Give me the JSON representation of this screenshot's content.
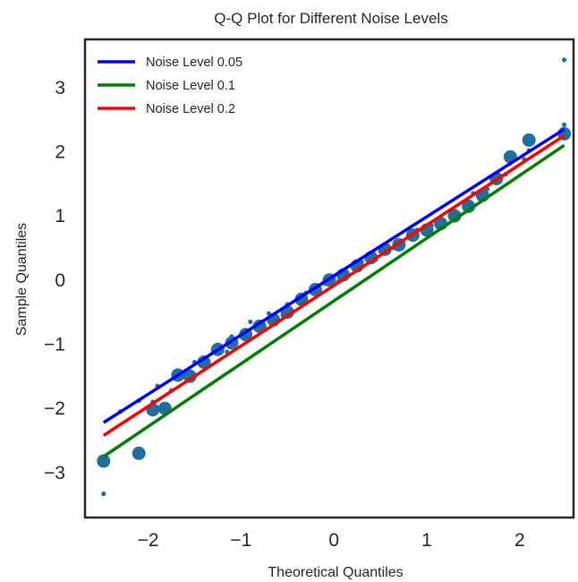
{
  "chart_data": {
    "type": "scatter",
    "title": "Q-Q Plot for Different Noise Levels",
    "xlabel": "Theoretical Quantiles",
    "ylabel": "Sample Quantiles",
    "xlim": [
      -2.68,
      2.58
    ],
    "ylim": [
      -3.7,
      3.75
    ],
    "xticks": [
      -2,
      -1,
      0,
      1,
      2
    ],
    "xtick_labels": [
      "−2",
      "−1",
      "0",
      "1",
      "2"
    ],
    "yticks": [
      -3,
      -2,
      -1,
      0,
      1,
      2,
      3
    ],
    "ytick_labels": [
      "−3",
      "−2",
      "−1",
      "0",
      "1",
      "2",
      "3"
    ],
    "grid": false,
    "legend_position": "top-left",
    "point_color": "#1f6f9f",
    "series": [
      {
        "name": "Noise Level 0.05",
        "color": "#0000ff",
        "marker_size": "small",
        "line": {
          "x": [
            -2.48,
            2.48
          ],
          "y": [
            -2.22,
            2.35
          ]
        },
        "points": [
          [
            -2.48,
            -3.33
          ],
          [
            -2.1,
            -1.88
          ],
          [
            -1.9,
            -1.65
          ],
          [
            -1.7,
            -1.42
          ],
          [
            -1.5,
            -1.28
          ],
          [
            -1.3,
            -1.1
          ],
          [
            -1.1,
            -0.88
          ],
          [
            -0.9,
            -0.65
          ],
          [
            -0.7,
            -0.52
          ],
          [
            -0.5,
            -0.38
          ],
          [
            -0.3,
            -0.2
          ],
          [
            -0.1,
            -0.05
          ],
          [
            0.1,
            0.1
          ],
          [
            0.3,
            0.28
          ],
          [
            0.5,
            0.45
          ],
          [
            0.7,
            0.62
          ],
          [
            0.9,
            0.78
          ],
          [
            1.1,
            0.92
          ],
          [
            1.3,
            1.08
          ],
          [
            1.5,
            1.35
          ],
          [
            1.7,
            1.6
          ],
          [
            1.9,
            1.82
          ],
          [
            2.1,
            2.02
          ],
          [
            2.48,
            3.43
          ]
        ]
      },
      {
        "name": "Noise Level 0.1",
        "color": "#008000",
        "marker_size": "small",
        "line": {
          "x": [
            -2.48,
            2.48
          ],
          "y": [
            -2.75,
            2.1
          ]
        },
        "points": [
          [
            -2.3,
            -2.05
          ],
          [
            -1.95,
            -1.9
          ],
          [
            -1.75,
            -1.72
          ],
          [
            -1.55,
            -1.45
          ],
          [
            -1.35,
            -1.3
          ],
          [
            -1.15,
            -1.12
          ],
          [
            -0.95,
            -0.92
          ],
          [
            -0.75,
            -0.72
          ],
          [
            -0.55,
            -0.55
          ],
          [
            -0.35,
            -0.38
          ],
          [
            -0.15,
            -0.2
          ],
          [
            0.05,
            -0.02
          ],
          [
            0.25,
            0.15
          ],
          [
            0.45,
            0.32
          ],
          [
            0.65,
            0.5
          ],
          [
            0.85,
            0.68
          ],
          [
            1.05,
            0.85
          ],
          [
            1.25,
            1.0
          ],
          [
            1.45,
            1.2
          ],
          [
            1.65,
            1.42
          ],
          [
            1.85,
            1.65
          ],
          [
            2.05,
            1.88
          ],
          [
            2.48,
            2.42
          ]
        ]
      },
      {
        "name": "Noise Level 0.2",
        "color": "#ff0000",
        "marker_size": "large",
        "line": {
          "x": [
            -2.48,
            2.48
          ],
          "y": [
            -2.42,
            2.25
          ]
        },
        "points": [
          [
            -2.48,
            -2.82
          ],
          [
            -2.1,
            -2.7
          ],
          [
            -1.95,
            -2.02
          ],
          [
            -1.82,
            -2.0
          ],
          [
            -1.68,
            -1.48
          ],
          [
            -1.55,
            -1.5
          ],
          [
            -1.4,
            -1.28
          ],
          [
            -1.25,
            -1.08
          ],
          [
            -1.1,
            -0.98
          ],
          [
            -0.95,
            -0.85
          ],
          [
            -0.8,
            -0.72
          ],
          [
            -0.65,
            -0.62
          ],
          [
            -0.5,
            -0.5
          ],
          [
            -0.35,
            -0.3
          ],
          [
            -0.2,
            -0.15
          ],
          [
            -0.05,
            0.0
          ],
          [
            0.1,
            0.08
          ],
          [
            0.25,
            0.22
          ],
          [
            0.4,
            0.35
          ],
          [
            0.55,
            0.48
          ],
          [
            0.7,
            0.55
          ],
          [
            0.85,
            0.7
          ],
          [
            1.0,
            0.78
          ],
          [
            1.15,
            0.88
          ],
          [
            1.3,
            1.0
          ],
          [
            1.45,
            1.15
          ],
          [
            1.6,
            1.32
          ],
          [
            1.75,
            1.58
          ],
          [
            1.9,
            1.92
          ],
          [
            2.1,
            2.18
          ],
          [
            2.48,
            2.28
          ]
        ]
      }
    ]
  }
}
